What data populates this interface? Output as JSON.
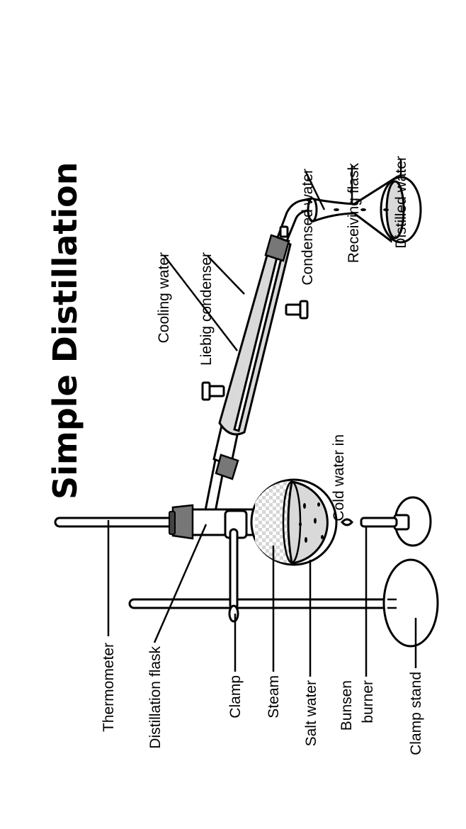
{
  "title": "Simple Distillation",
  "labels": {
    "thermometer": "Thermometer",
    "distillation_flask": "Distillation flask",
    "clamp": "Clamp",
    "steam": "Steam",
    "salt_water": "Salt water",
    "bunsen_burner_line1": "Bunsen",
    "bunsen_burner_line2": "burner",
    "clamp_stand": "Clamp stand",
    "cooling_water": "Cooling water",
    "liebig_condenser": "Liebig condenser",
    "cold_water_in": "Cold water in",
    "condensed_water": "Condensed water",
    "receiving_flask": "Receiving flask",
    "distilled_water": "Distilled water"
  },
  "colors": {
    "glass_fill": "#d9d9d9",
    "stopper": "#777777",
    "ink": "#000000"
  }
}
